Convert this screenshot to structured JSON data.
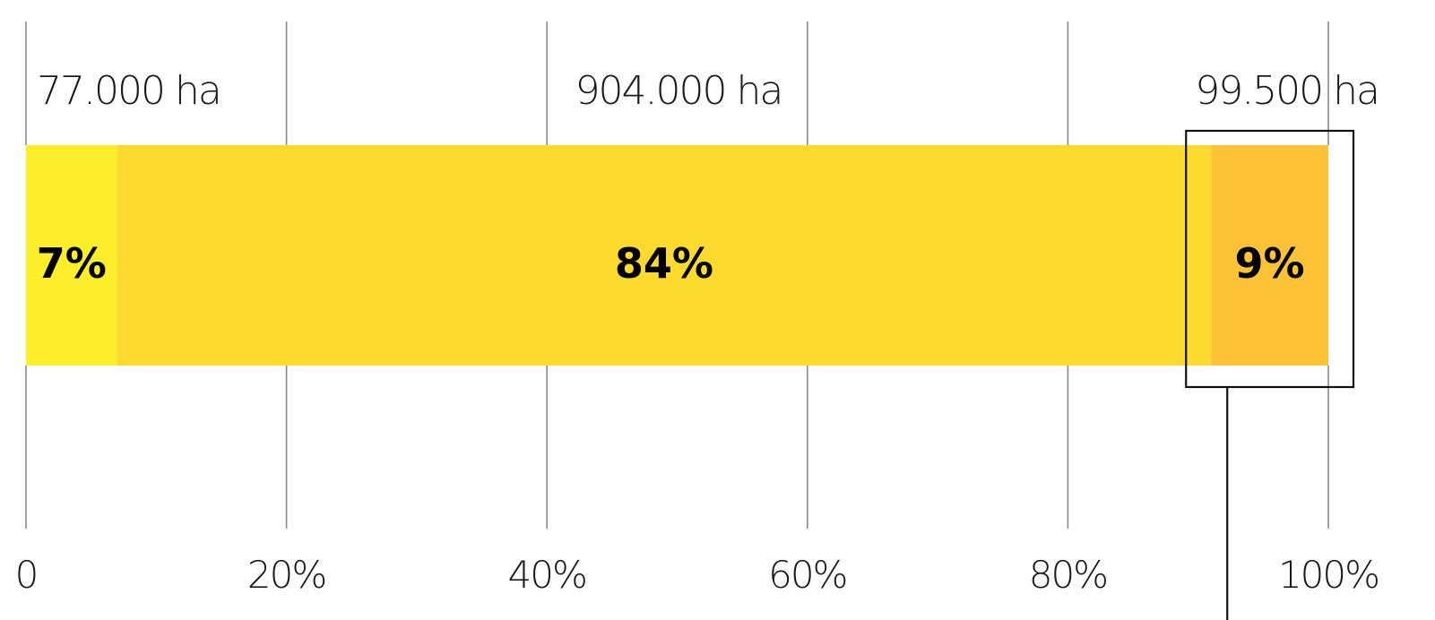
{
  "chart_data": {
    "type": "bar",
    "orientation": "horizontal-stacked",
    "xlim": [
      0,
      100
    ],
    "x_ticks": [
      "0",
      "20%",
      "40%",
      "60%",
      "80%",
      "100%"
    ],
    "x_tick_values": [
      0,
      20,
      40,
      60,
      80,
      100
    ],
    "grid": true,
    "series": [
      {
        "area_label": "77.000 ha",
        "value": 7,
        "label": "7%",
        "color": "#FCEE2A"
      },
      {
        "area_label": "904.000 ha",
        "value": 84,
        "label": "84%",
        "color": "#FDDB2E"
      },
      {
        "area_label": "99.500 ha",
        "value": 9,
        "label": "9%",
        "color": "#FEC236"
      }
    ],
    "highlighted_segment": 2
  }
}
